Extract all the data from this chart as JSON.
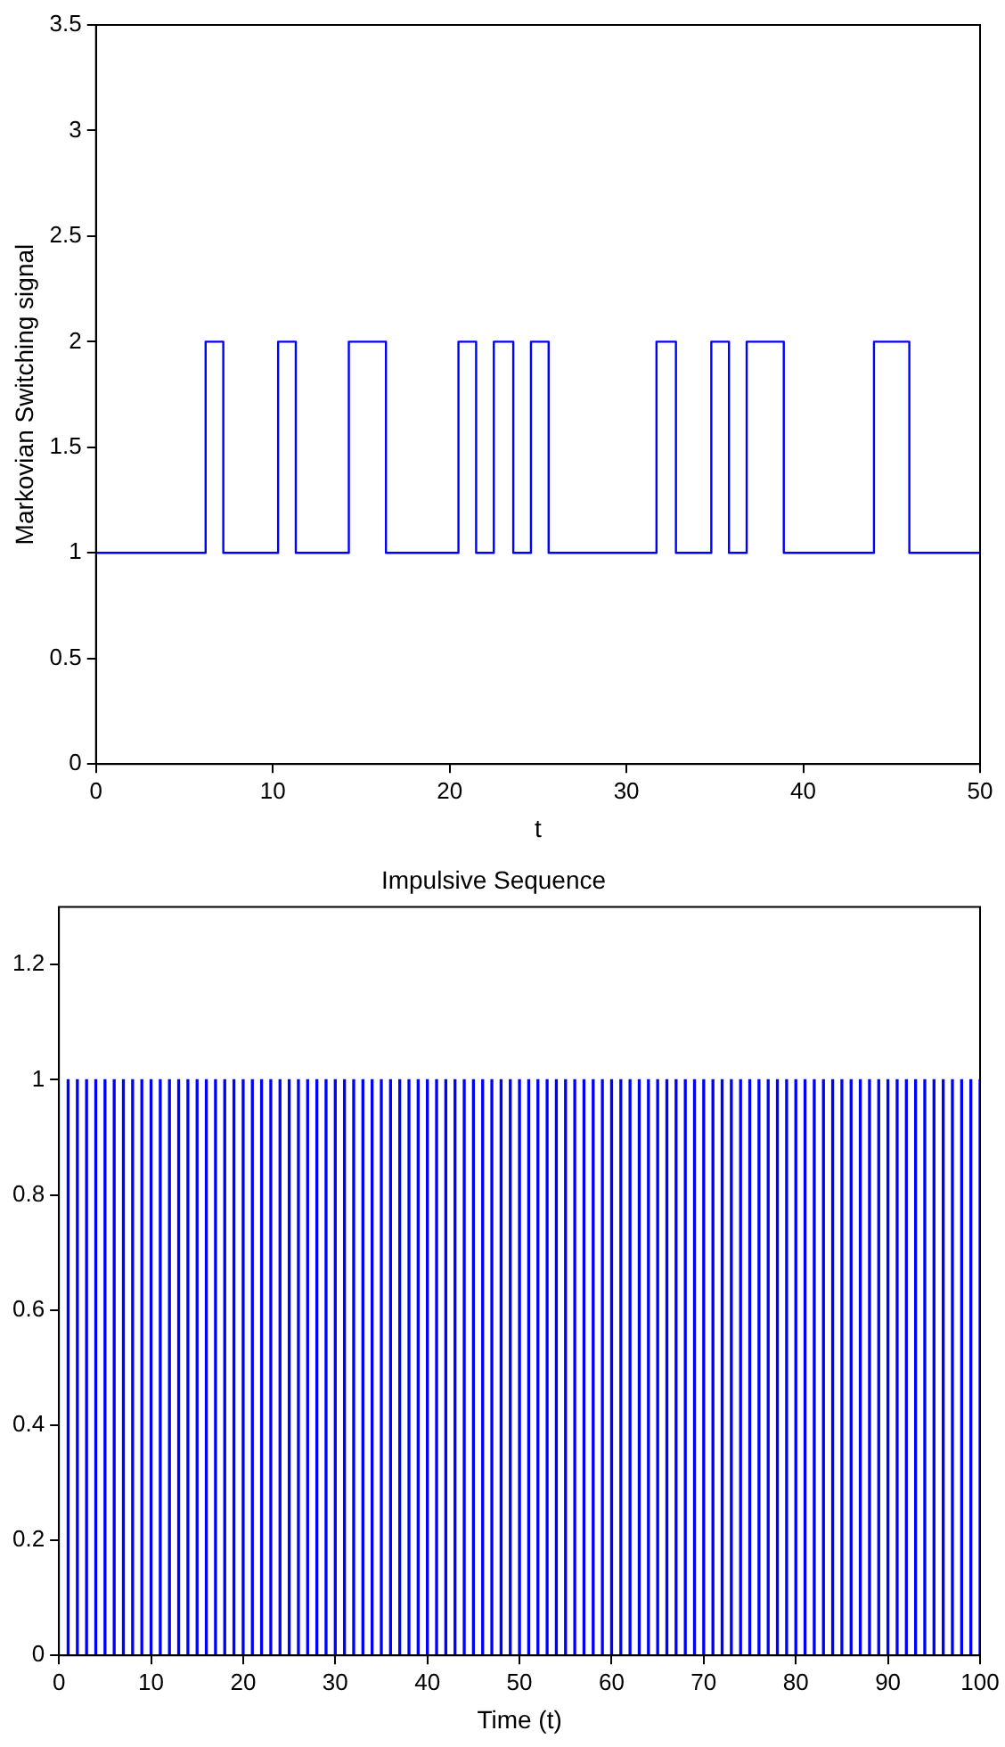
{
  "chart_data": [
    {
      "type": "step",
      "xlabel": "t",
      "ylabel": "Markovian Switching signal",
      "x": [
        0,
        6.2,
        7.2,
        10.3,
        11.3,
        14.3,
        16.4,
        20.5,
        21.5,
        22.5,
        23.6,
        24.6,
        25.6,
        31.7,
        32.8,
        34.8,
        35.8,
        36.8,
        38.9,
        44.0,
        46.0,
        50
      ],
      "series": [
        {
          "color": "#0000ff",
          "values": [
            1,
            2,
            1,
            2,
            1,
            2,
            1,
            2,
            1,
            2,
            1,
            2,
            1,
            2,
            1,
            2,
            1,
            2,
            1,
            2,
            1,
            1
          ]
        }
      ],
      "xlim": [
        0,
        50
      ],
      "xticks": [
        0,
        10,
        20,
        30,
        40,
        50
      ],
      "ylim": [
        0,
        3.5
      ],
      "yticks": [
        0,
        0.5,
        1,
        1.5,
        2,
        2.5,
        3,
        3.5
      ],
      "grid": false,
      "legend": false
    },
    {
      "type": "bar",
      "title": "Impulsive Sequence",
      "xlabel": "Time (t)",
      "x": [
        1,
        2,
        3,
        4,
        5,
        6,
        7,
        8,
        9,
        10,
        11,
        12,
        13,
        14,
        15,
        16,
        17,
        18,
        19,
        20,
        21,
        22,
        23,
        24,
        25,
        26,
        27,
        28,
        29,
        30,
        31,
        32,
        33,
        34,
        35,
        36,
        37,
        38,
        39,
        40,
        41,
        42,
        43,
        44,
        45,
        46,
        47,
        48,
        49,
        50,
        51,
        52,
        53,
        54,
        55,
        56,
        57,
        58,
        59,
        60,
        61,
        62,
        63,
        64,
        65,
        66,
        67,
        68,
        69,
        70,
        71,
        72,
        73,
        74,
        75,
        76,
        77,
        78,
        79,
        80,
        81,
        82,
        83,
        84,
        85,
        86,
        87,
        88,
        89,
        90,
        91,
        92,
        93,
        94,
        95,
        96,
        97,
        98,
        99,
        100
      ],
      "series": [
        {
          "color": "#0000ff",
          "values": [
            1,
            1,
            1,
            1,
            1,
            1,
            1,
            1,
            1,
            1,
            1,
            1,
            1,
            1,
            1,
            1,
            1,
            1,
            1,
            1,
            1,
            1,
            1,
            1,
            1,
            1,
            1,
            1,
            1,
            1,
            1,
            1,
            1,
            1,
            1,
            1,
            1,
            1,
            1,
            1,
            1,
            1,
            1,
            1,
            1,
            1,
            1,
            1,
            1,
            1,
            1,
            1,
            1,
            1,
            1,
            1,
            1,
            1,
            1,
            1,
            1,
            1,
            1,
            1,
            1,
            1,
            1,
            1,
            1,
            1,
            1,
            1,
            1,
            1,
            1,
            1,
            1,
            1,
            1,
            1,
            1,
            1,
            1,
            1,
            1,
            1,
            1,
            1,
            1,
            1,
            1,
            1,
            1,
            1,
            1,
            1,
            1,
            1,
            1,
            1
          ]
        }
      ],
      "xlim": [
        0,
        100
      ],
      "xticks": [
        0,
        10,
        20,
        30,
        40,
        50,
        60,
        70,
        80,
        90,
        100
      ],
      "ylim": [
        0,
        1.3
      ],
      "yticks": [
        0,
        0.2,
        0.4,
        0.6,
        0.8,
        1,
        1.2
      ],
      "grid": false,
      "legend": false
    }
  ]
}
